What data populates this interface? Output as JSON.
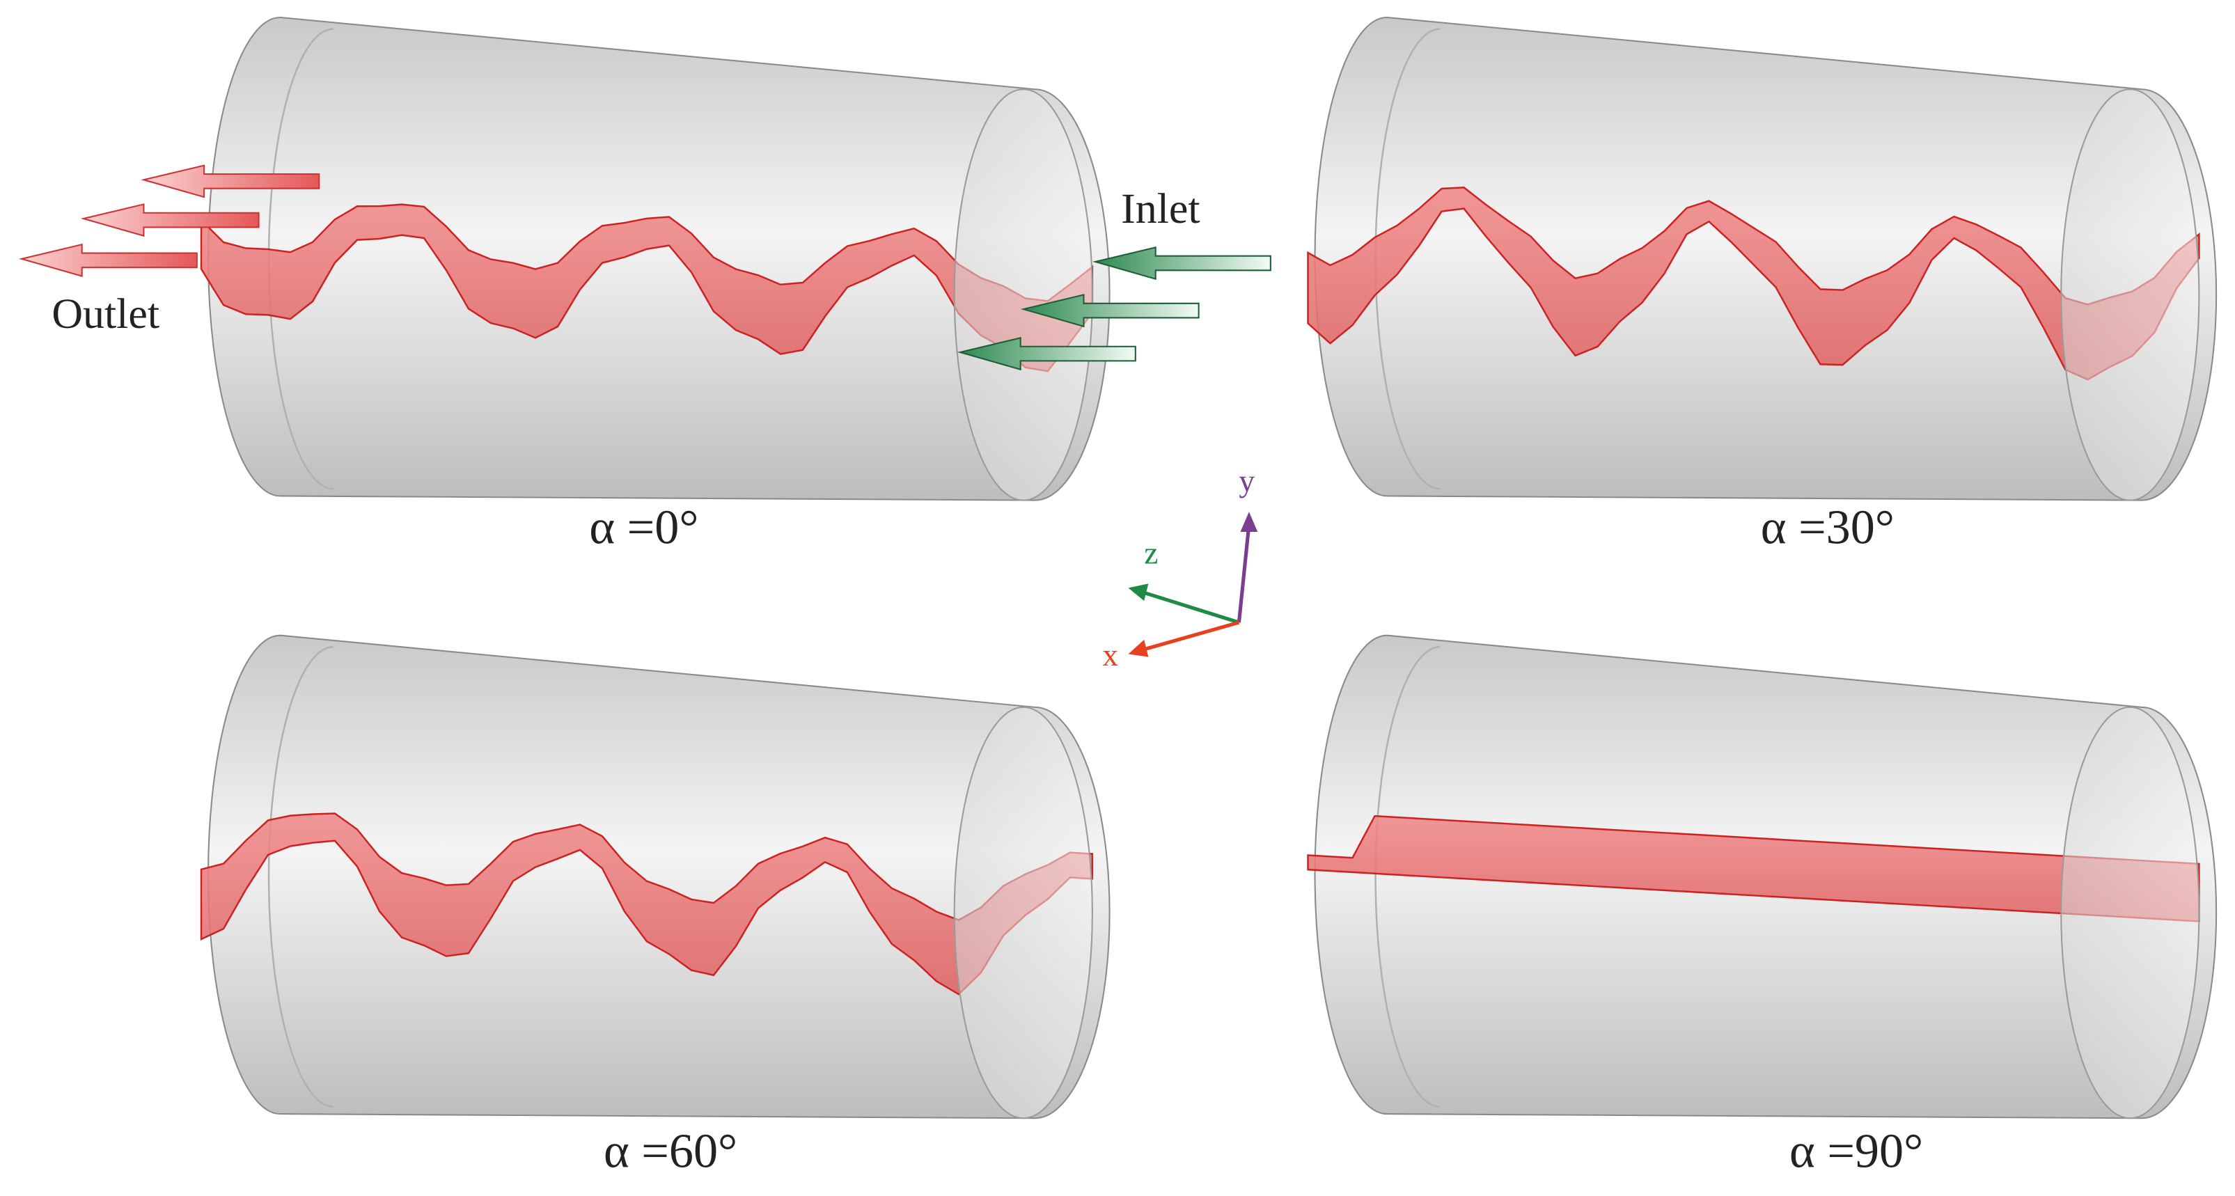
{
  "panels": [
    {
      "caption": "α =0°"
    },
    {
      "caption": "α =30°"
    },
    {
      "caption": "α =60°"
    },
    {
      "caption": "α =90°"
    }
  ],
  "flow_labels": {
    "outlet": "Outlet",
    "inlet": "Inlet"
  },
  "axes": {
    "x": "x",
    "y": "y",
    "z": "z"
  }
}
